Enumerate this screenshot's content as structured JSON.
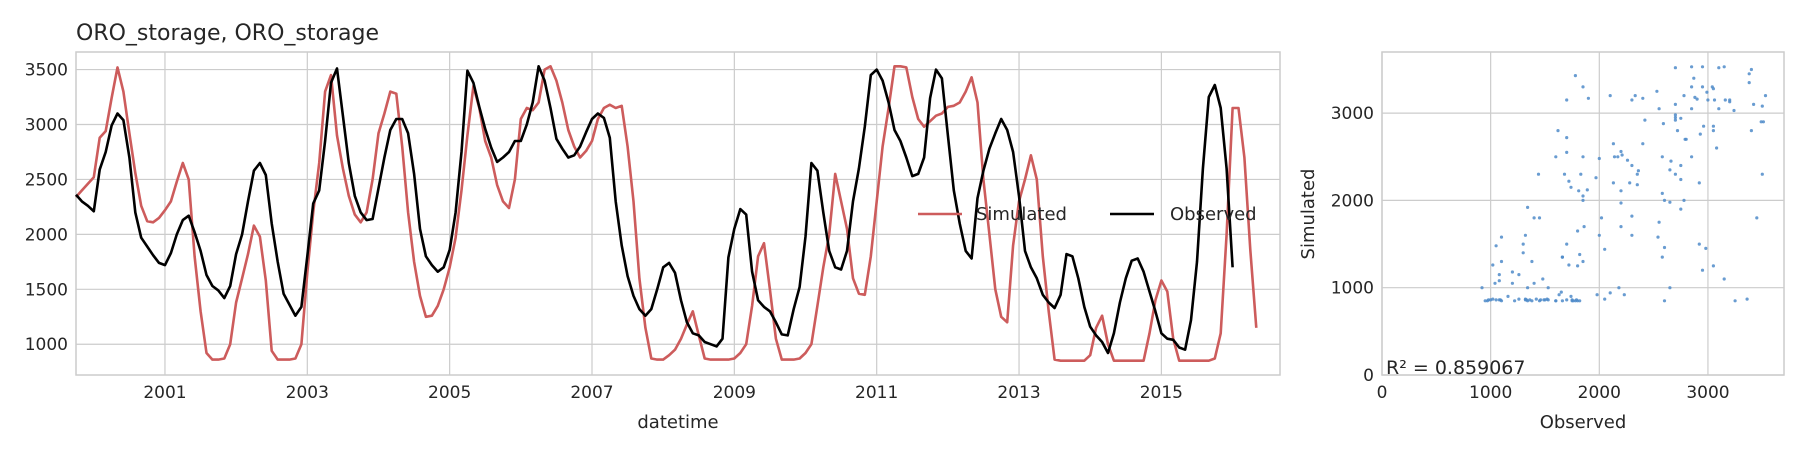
{
  "figure": {
    "left_title": "ORO_storage, ORO_storage"
  },
  "chart_data": [
    {
      "type": "line",
      "title": "ORO_storage, ORO_storage",
      "xlabel": "datetime",
      "ylabel": "",
      "xlim": [
        "1999-10",
        "2016-09"
      ],
      "ylim": [
        720,
        3660
      ],
      "xticks": [
        "2001",
        "2003",
        "2005",
        "2007",
        "2009",
        "2011",
        "2013",
        "2015"
      ],
      "yticks": [
        1000,
        1500,
        2000,
        2500,
        3000,
        3500
      ],
      "grid": true,
      "legend_position": "center-right",
      "colors": {
        "Simulated": "#cd5c5c",
        "Observed": "#000000",
        "grid": "#cccccc",
        "frame": "#cccccc"
      },
      "series": [
        {
          "name": "Simulated",
          "start": "1999-10",
          "step": "month",
          "values": [
            2340,
            2400,
            2460,
            2520,
            2880,
            2940,
            3240,
            3520,
            3300,
            2920,
            2560,
            2260,
            2120,
            2110,
            2150,
            2220,
            2300,
            2480,
            2650,
            2500,
            1800,
            1300,
            920,
            860,
            860,
            870,
            1000,
            1380,
            1600,
            1820,
            2080,
            1980,
            1580,
            940,
            860,
            860,
            860,
            870,
            1000,
            1650,
            2200,
            2650,
            3300,
            3450,
            2900,
            2600,
            2350,
            2180,
            2110,
            2200,
            2500,
            2920,
            3100,
            3300,
            3280,
            2800,
            2200,
            1750,
            1440,
            1250,
            1260,
            1350,
            1500,
            1700,
            1970,
            2400,
            2900,
            3350,
            3150,
            2850,
            2700,
            2450,
            2300,
            2240,
            2500,
            3050,
            3150,
            3130,
            3200,
            3500,
            3530,
            3400,
            3200,
            2950,
            2800,
            2700,
            2760,
            2850,
            3050,
            3150,
            3180,
            3150,
            3170,
            2800,
            2300,
            1600,
            1150,
            870,
            860,
            860,
            900,
            950,
            1050,
            1180,
            1300,
            1080,
            870,
            860,
            860,
            860,
            860,
            870,
            920,
            1000,
            1350,
            1800,
            1920,
            1500,
            1050,
            860,
            860,
            860,
            870,
            920,
            1000,
            1350,
            1700,
            2000,
            2550,
            2300,
            2050,
            1600,
            1460,
            1450,
            1800,
            2300,
            2800,
            3150,
            3530,
            3530,
            3520,
            3250,
            3050,
            2980,
            3030,
            3080,
            3100,
            3160,
            3170,
            3200,
            3300,
            3430,
            3200,
            2500,
            2000,
            1500,
            1250,
            1200,
            1900,
            2300,
            2500,
            2720,
            2500,
            1800,
            1300,
            860,
            850,
            850,
            850,
            850,
            850,
            900,
            1150,
            1260,
            1000,
            850,
            850,
            850,
            850,
            850,
            850,
            1100,
            1400,
            1580,
            1480,
            1050,
            850,
            850,
            850,
            850,
            850,
            850,
            870,
            1100,
            2000,
            3150,
            3150,
            2700,
            1860,
            1150
          ]
        },
        {
          "name": "Observed",
          "start": "1999-10",
          "step": "month",
          "values": [
            2360,
            2300,
            2260,
            2210,
            2590,
            2750,
            2990,
            3100,
            3040,
            2700,
            2200,
            1970,
            1890,
            1810,
            1740,
            1720,
            1830,
            2000,
            2130,
            2170,
            2020,
            1850,
            1630,
            1530,
            1490,
            1420,
            1530,
            1820,
            2000,
            2300,
            2580,
            2650,
            2540,
            2100,
            1750,
            1460,
            1360,
            1260,
            1340,
            1800,
            2280,
            2400,
            2850,
            3380,
            3510,
            3080,
            2650,
            2350,
            2200,
            2130,
            2140,
            2420,
            2700,
            2950,
            3050,
            3050,
            2920,
            2550,
            2050,
            1800,
            1720,
            1660,
            1700,
            1860,
            2200,
            2750,
            3490,
            3380,
            3160,
            2960,
            2790,
            2660,
            2700,
            2750,
            2850,
            2850,
            3000,
            3200,
            3530,
            3400,
            3150,
            2870,
            2780,
            2700,
            2720,
            2800,
            2930,
            3050,
            3100,
            3060,
            2880,
            2300,
            1900,
            1620,
            1440,
            1320,
            1260,
            1320,
            1500,
            1700,
            1740,
            1650,
            1400,
            1200,
            1100,
            1080,
            1020,
            1000,
            980,
            1050,
            1790,
            2050,
            2230,
            2180,
            1660,
            1400,
            1340,
            1300,
            1200,
            1090,
            1080,
            1320,
            1520,
            1980,
            2650,
            2580,
            2200,
            1850,
            1700,
            1680,
            1850,
            2300,
            2600,
            2980,
            3450,
            3500,
            3400,
            3200,
            2950,
            2850,
            2700,
            2530,
            2550,
            2700,
            3240,
            3500,
            3420,
            2900,
            2400,
            2100,
            1850,
            1780,
            2330,
            2580,
            2780,
            2920,
            3050,
            2950,
            2750,
            2350,
            1850,
            1700,
            1600,
            1450,
            1380,
            1330,
            1450,
            1820,
            1800,
            1600,
            1340,
            1160,
            1080,
            1020,
            920,
            1100,
            1380,
            1600,
            1760,
            1780,
            1660,
            1480,
            1300,
            1100,
            1050,
            1040,
            970,
            950,
            1220,
            1750,
            2600,
            3250,
            3360,
            3150,
            2600,
            1700
          ]
        }
      ]
    },
    {
      "type": "scatter",
      "title": "",
      "xlabel": "Observed",
      "ylabel": "Simulated",
      "xlim": [
        0,
        3700
      ],
      "ylim": [
        0,
        3700
      ],
      "xticks": [
        0,
        1000,
        2000,
        3000
      ],
      "yticks": [
        0,
        1000,
        2000,
        3000
      ],
      "grid": true,
      "annotation": "R² = 0.859067",
      "colors": {
        "points": "#4f8bc9"
      },
      "points_source": "pairs of the Observed (x) and Simulated (y) monthly values from the line chart"
    }
  ]
}
